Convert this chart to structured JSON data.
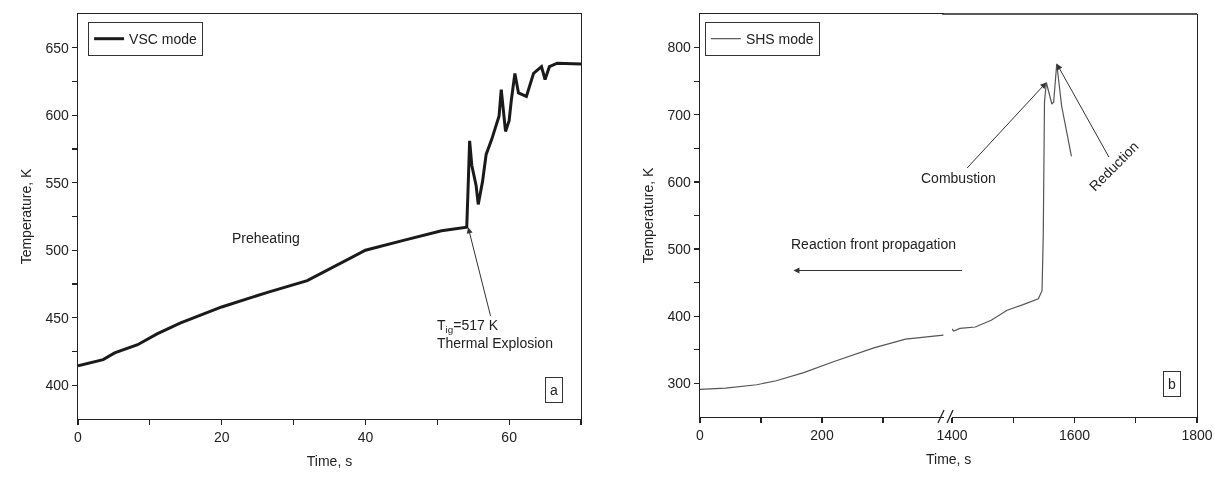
{
  "chart_data": [
    {
      "type": "line",
      "xlabel": "Time, s",
      "ylabel": "Temperature, K",
      "xlim": [
        0,
        70
      ],
      "ylim": [
        375,
        675
      ],
      "xticks": [
        0,
        {
          "value": 10,
          "label": null
        },
        20,
        {
          "value": 30,
          "label": null
        },
        40,
        {
          "value": 50,
          "label": null
        },
        60,
        {
          "value": 70,
          "label": null
        }
      ],
      "yticks": [
        400,
        {
          "value": 425,
          "label": null
        },
        450,
        {
          "value": 475,
          "label": null
        },
        500,
        {
          "value": 525,
          "label": null
        },
        550,
        {
          "value": 575,
          "label": null
        },
        600,
        {
          "value": 625,
          "label": null
        },
        650
      ],
      "grid": false,
      "legend": "top left",
      "marker": "none",
      "line_style": "solid",
      "series": [
        {
          "name": "VSC mode",
          "color": "#1a1a1a",
          "x": [
            0,
            3.5,
            5.1,
            8.3,
            11,
            14.2,
            20,
            26.5,
            31.9,
            40,
            45.3,
            50.6,
            54.1,
            54.3,
            54.5,
            54.8,
            55.4,
            55.7,
            56.3,
            56.8,
            57.6,
            58.1,
            58.6,
            58.9,
            59.5,
            60,
            60.3,
            60.8,
            61.3,
            62.4,
            63.4,
            64.5,
            65,
            65.6,
            66.7,
            70
          ],
          "values": [
            414.5,
            419,
            424,
            430,
            438,
            446,
            458,
            469,
            477.5,
            500,
            507.3,
            514.4,
            517,
            548,
            581,
            563,
            548,
            534,
            551,
            571,
            582.5,
            591,
            599.5,
            619,
            588,
            596,
            611,
            631,
            616.5,
            614,
            631,
            636,
            626.5,
            636,
            638.6,
            638
          ]
        }
      ],
      "annotations": [
        "Preheating",
        {
          "text": "T$_{ig}$=517 K\nThermal Explosion",
          "x": 54.3,
          "y": 517
        },
        "a"
      ]
    },
    {
      "type": "line",
      "xlabel": "Time, s",
      "ylabel": "Temperature, K",
      "xlim": [
        0,
        400
      ],
      "ylim": [
        250,
        850
      ],
      "xticks": [
        0,
        {
          "value": 100,
          "label": null
        },
        200,
        {
          "value": 300,
          "label": null
        }
      ],
      "yticks": [
        300,
        {
          "value": 350,
          "label": null
        },
        400,
        {
          "value": 450,
          "label": null
        },
        500,
        {
          "value": 550,
          "label": null
        },
        600,
        {
          "value": 650,
          "label": null
        },
        700,
        {
          "value": 750,
          "label": null
        },
        800
      ],
      "grid": false,
      "legend": "top left",
      "marker": "none",
      "line_style": "solid",
      "series": [
        {
          "name": "SHS mode",
          "color": "#555555",
          "x": [
            0,
            41.7,
            93,
            125,
            170,
            221,
            285,
            337,
            399
          ],
          "values": [
            291,
            293,
            298,
            304,
            316,
            333,
            353,
            366,
            372
          ]
        }
      ],
      "annotations": [
        "Reaction front propagation"
      ]
    },
    {
      "type": "line",
      "xlim": [
        1400,
        1800
      ],
      "ylim": [
        250,
        850
      ],
      "xticks": [
        1400,
        {
          "value": 1500,
          "label": null
        },
        1600,
        {
          "value": 1700,
          "label": null
        },
        1800
      ],
      "tick_labels": "x",
      "grid": false,
      "marker": "none",
      "line_style": "solid",
      "series": [
        {
          "color": "#555555",
          "x": [
            1400,
            1403,
            1413,
            1438,
            1464,
            1490,
            1515,
            1541,
            1547,
            1549,
            1551,
            1554,
            1563,
            1566,
            1571,
            1579,
            1595
          ],
          "values": [
            381,
            378,
            382,
            384,
            394,
            409,
            417,
            426,
            438,
            521,
            719,
            748,
            716,
            719,
            776,
            713,
            638
          ]
        }
      ],
      "annotations": [
        {
          "text": "Combustion",
          "x": 1554,
          "y": 748
        },
        {
          "text": "Reduction",
          "x": 1571,
          "y": 776
        },
        "b"
      ]
    }
  ]
}
